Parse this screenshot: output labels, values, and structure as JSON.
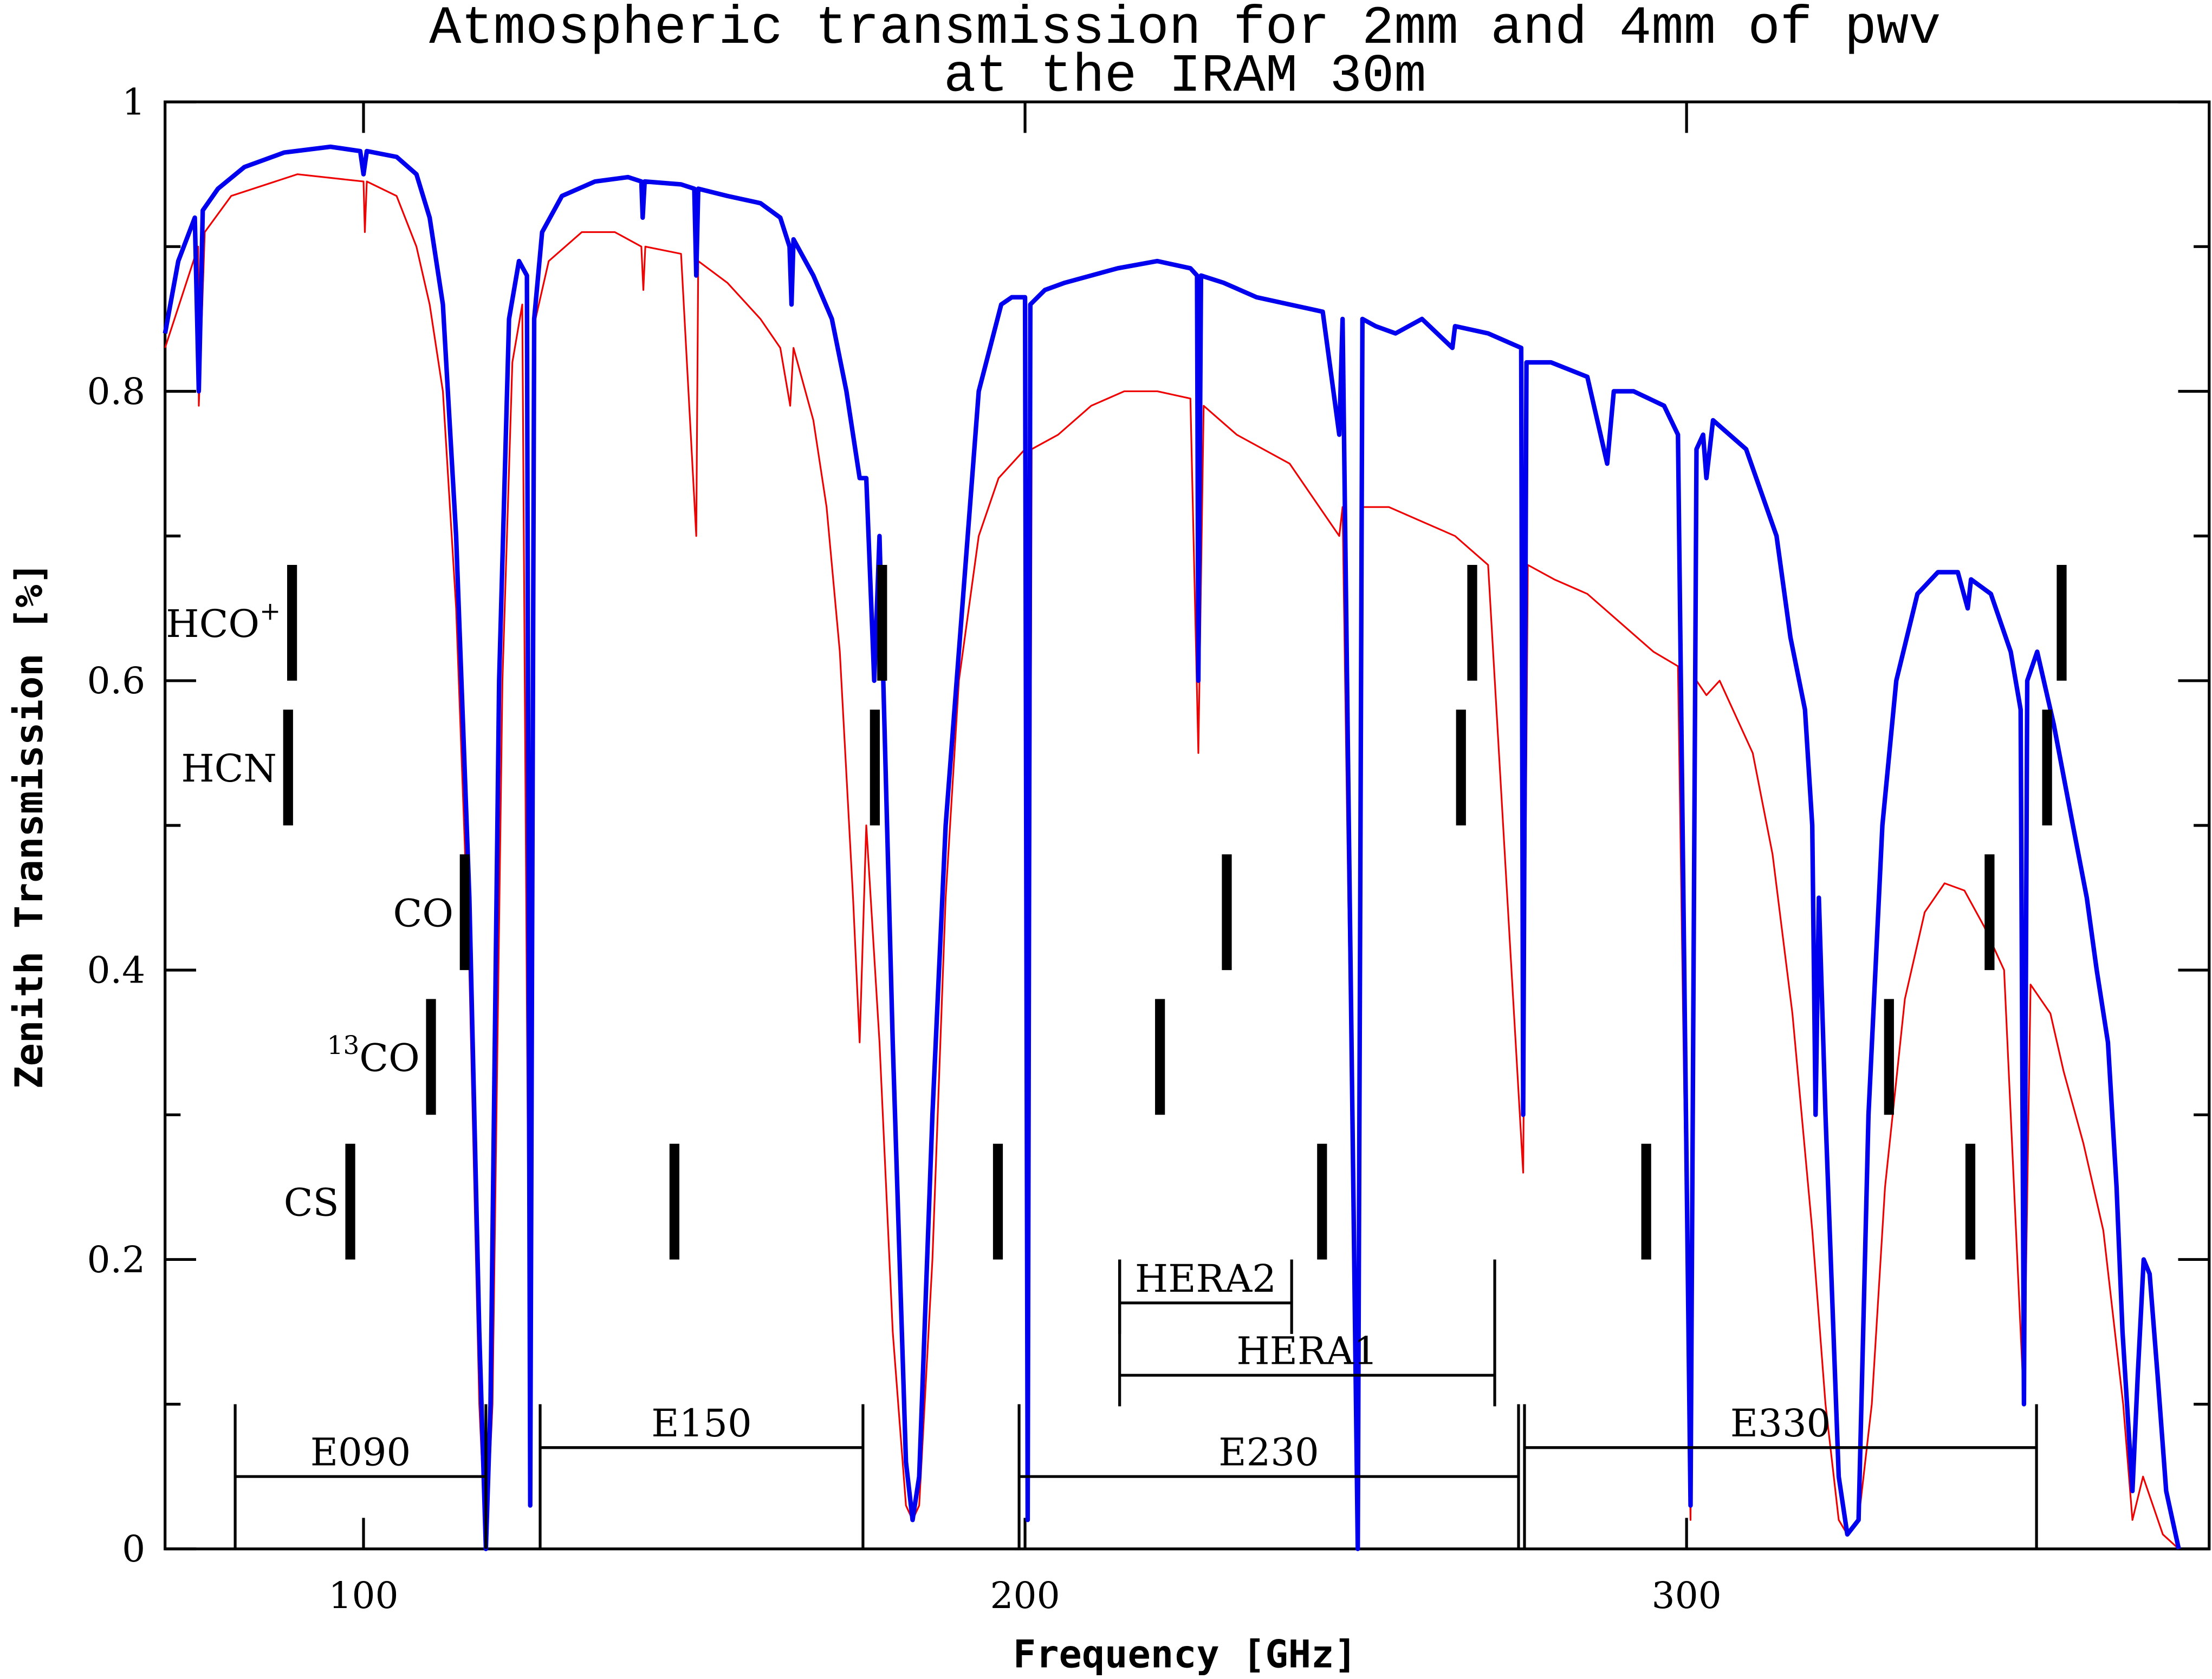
{
  "chart_data": {
    "type": "line",
    "title": [
      "Atmospheric transmission for 2mm and 4mm of pwv",
      "at the IRAM 30m"
    ],
    "xlabel": "Frequency [GHz]",
    "ylabel": "Zenith Transmission [%]",
    "xlim": [
      70,
      379
    ],
    "ylim": [
      0,
      1
    ],
    "xticks": [
      100,
      200,
      300
    ],
    "yticks": [
      0,
      0.2,
      0.4,
      0.6,
      0.8,
      1
    ],
    "yminor": [
      0.1,
      0.3,
      0.5,
      0.7,
      0.9
    ],
    "series": [
      {
        "color": "#0000ee",
        "x": [
          70,
          72,
          74.5,
          75.1,
          75.7,
          78,
          82,
          88,
          95,
          99.5,
          100,
          100.5,
          105,
          108,
          110,
          112,
          114,
          116,
          117.5,
          118.5,
          119.2,
          120.5,
          122,
          123.5,
          124.7,
          125.2,
          125.8,
          127,
          130,
          135,
          140,
          142,
          142.2,
          142.5,
          148,
          150,
          150.3,
          150.6,
          155,
          160,
          163,
          164.4,
          164.7,
          165,
          168,
          170.8,
          173,
          175,
          176,
          177.2,
          178,
          180,
          182,
          183,
          184,
          186,
          188,
          190,
          193,
          196.4,
          198,
          200,
          200.4,
          200.8,
          203,
          206,
          210,
          214,
          220,
          225,
          226,
          226.2,
          226.6,
          230,
          235,
          240,
          245,
          247.5,
          248,
          250.3,
          251,
          253,
          256,
          260,
          264.6,
          265,
          270,
          275,
          275.3,
          275.8,
          279.5,
          285,
          288,
          289,
          292,
          296.6,
          298.7,
          300.6,
          301.5,
          302.5,
          303,
          304,
          309,
          313.6,
          315.7,
          317.9,
          319,
          319.5,
          320,
          321,
          323,
          324.3,
          326,
          327.5,
          329.6,
          331.7,
          334.9,
          338,
          341,
          342.5,
          343,
          346,
          349,
          350.5,
          351,
          351.5,
          353,
          355.5,
          358.4,
          360.5,
          362,
          363.7,
          365,
          365.9,
          367.4,
          368.2,
          369.1,
          370,
          371.2,
          372.5,
          374.4
        ],
        "values": [
          0.84,
          0.89,
          0.92,
          0.8,
          0.925,
          0.94,
          0.955,
          0.965,
          0.969,
          0.966,
          0.95,
          0.966,
          0.962,
          0.95,
          0.92,
          0.86,
          0.7,
          0.45,
          0.15,
          0,
          0.1,
          0.6,
          0.85,
          0.89,
          0.88,
          0.03,
          0.85,
          0.91,
          0.935,
          0.945,
          0.948,
          0.945,
          0.92,
          0.945,
          0.943,
          0.94,
          0.88,
          0.94,
          0.935,
          0.93,
          0.92,
          0.9,
          0.86,
          0.905,
          0.88,
          0.85,
          0.8,
          0.74,
          0.74,
          0.6,
          0.7,
          0.35,
          0.06,
          0.02,
          0.05,
          0.3,
          0.5,
          0.62,
          0.8,
          0.86,
          0.865,
          0.865,
          0.02,
          0.86,
          0.87,
          0.875,
          0.88,
          0.885,
          0.89,
          0.885,
          0.88,
          0.6,
          0.88,
          0.875,
          0.865,
          0.86,
          0.855,
          0.77,
          0.85,
          0,
          0.85,
          0.845,
          0.84,
          0.85,
          0.83,
          0.845,
          0.84,
          0.83,
          0.3,
          0.82,
          0.82,
          0.81,
          0.75,
          0.8,
          0.8,
          0.79,
          0.77,
          0.03,
          0.76,
          0.77,
          0.74,
          0.78,
          0.76,
          0.7,
          0.63,
          0.58,
          0.5,
          0.3,
          0.45,
          0.3,
          0.05,
          0.01,
          0.02,
          0.3,
          0.5,
          0.6,
          0.66,
          0.675,
          0.675,
          0.65,
          0.67,
          0.66,
          0.62,
          0.58,
          0.1,
          0.6,
          0.62,
          0.57,
          0.5,
          0.45,
          0.4,
          0.35,
          0.25,
          0.15,
          0.04,
          0.12,
          0.2,
          0.19,
          0.12,
          0.04,
          0
        ]
      },
      {
        "color": "#ee0000",
        "x": [
          70,
          75,
          75.1,
          76,
          80,
          90,
          100,
          100.2,
          100.5,
          105,
          108,
          110,
          112,
          114,
          116,
          117.5,
          118.5,
          119.5,
          121,
          122.5,
          124,
          125.2,
          126,
          128,
          133,
          138,
          142,
          142.3,
          142.6,
          148,
          150.3,
          150.6,
          155,
          160,
          163,
          164.5,
          165,
          168,
          170,
          172,
          174,
          175,
          176,
          178,
          180,
          182,
          183,
          184,
          186,
          188,
          190,
          193,
          196,
          198,
          200,
          200.5,
          201,
          205,
          210,
          215,
          220,
          225,
          226.2,
          227,
          232,
          240,
          247.5,
          248,
          250.3,
          251,
          255,
          260,
          265,
          270,
          275.3,
          276,
          280,
          285,
          290,
          295,
          298.7,
          300.6,
          301.5,
          303,
          305,
          310,
          313,
          316,
          319,
          321,
          323,
          324.3,
          326,
          328,
          330,
          333,
          336,
          339,
          342,
          345,
          348,
          351,
          352,
          355,
          357,
          360,
          363,
          366,
          367.4,
          369,
          372,
          374.4
        ],
        "values": [
          0.83,
          0.9,
          0.79,
          0.91,
          0.935,
          0.95,
          0.945,
          0.91,
          0.945,
          0.935,
          0.9,
          0.86,
          0.8,
          0.65,
          0.4,
          0.1,
          0,
          0.1,
          0.6,
          0.82,
          0.86,
          0.03,
          0.85,
          0.89,
          0.91,
          0.91,
          0.9,
          0.87,
          0.9,
          0.895,
          0.7,
          0.89,
          0.875,
          0.85,
          0.83,
          0.79,
          0.83,
          0.78,
          0.72,
          0.62,
          0.45,
          0.35,
          0.5,
          0.35,
          0.15,
          0.03,
          0.02,
          0.03,
          0.2,
          0.45,
          0.6,
          0.7,
          0.74,
          0.75,
          0.76,
          0.02,
          0.76,
          0.77,
          0.79,
          0.8,
          0.8,
          0.795,
          0.55,
          0.79,
          0.77,
          0.75,
          0.7,
          0.72,
          0,
          0.72,
          0.72,
          0.71,
          0.7,
          0.68,
          0.26,
          0.68,
          0.67,
          0.66,
          0.64,
          0.62,
          0.61,
          0.02,
          0.6,
          0.59,
          0.6,
          0.55,
          0.48,
          0.37,
          0.22,
          0.1,
          0.02,
          0.01,
          0.02,
          0.1,
          0.25,
          0.38,
          0.44,
          0.46,
          0.455,
          0.43,
          0.4,
          0.1,
          0.39,
          0.37,
          0.33,
          0.28,
          0.22,
          0.1,
          0.02,
          0.05,
          0.01,
          0
        ]
      }
    ],
    "lines": [
      {
        "label": "HCO",
        "sup": "+",
        "yrange": [
          0.6,
          0.68
        ],
        "x": [
          89.2,
          178.4,
          267.6,
          356.7
        ]
      },
      {
        "label": "HCN",
        "yrange": [
          0.5,
          0.58
        ],
        "x": [
          88.6,
          177.3,
          265.9,
          354.5
        ]
      },
      {
        "label": "CO",
        "yrange": [
          0.4,
          0.48
        ],
        "x": [
          115.3,
          230.5,
          345.8
        ]
      },
      {
        "pre": "13",
        "label": "CO",
        "yrange": [
          0.3,
          0.38
        ],
        "x": [
          110.2,
          220.4,
          330.6
        ]
      },
      {
        "label": "CS",
        "yrange": [
          0.2,
          0.28
        ],
        "x": [
          98.0,
          147.0,
          195.9,
          244.9,
          293.9,
          342.9
        ]
      }
    ],
    "bands": [
      {
        "label": "E090",
        "x": [
          80.6,
          118.5
        ],
        "y": 0.05
      },
      {
        "label": "E150",
        "x": [
          126.7,
          175.5
        ],
        "y": 0.07
      },
      {
        "label": "E230",
        "x": [
          199.1,
          274.6
        ],
        "y": 0.05
      },
      {
        "label": "E330",
        "x": [
          275.5,
          352.9
        ],
        "y": 0.07
      },
      {
        "label": "HERA2",
        "x": [
          214.3,
          240.3
        ],
        "y": 0.17
      },
      {
        "label": "HERA1",
        "x": [
          214.3,
          271.0
        ],
        "y": 0.12
      }
    ]
  }
}
